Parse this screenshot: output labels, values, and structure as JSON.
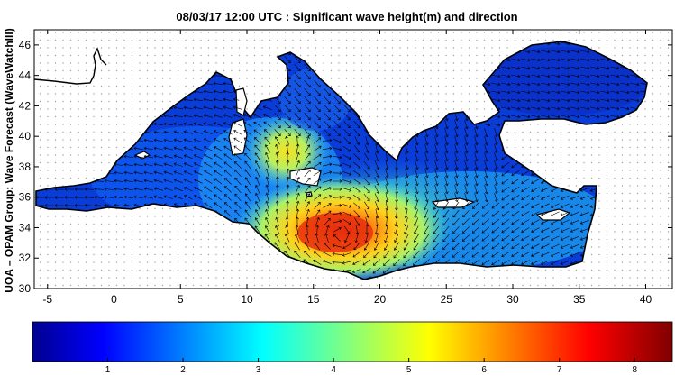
{
  "title": "08/03/17 12:00 UTC : Significant wave height(m) and direction",
  "side_label": "UOA – OPAM Group: Wave Forecast  (WaveWatchIII)",
  "map": {
    "lon_range": [
      -6,
      42
    ],
    "lat_range": [
      30,
      47
    ],
    "x_ticks": [
      -5,
      0,
      5,
      10,
      15,
      20,
      25,
      30,
      35,
      40
    ],
    "y_ticks": [
      30,
      32,
      34,
      36,
      38,
      40,
      42,
      44,
      46
    ],
    "land_color": "#ffffff",
    "coast_color": "#000000"
  },
  "colorbar": {
    "min": 0,
    "max": 8.5,
    "ticks": [
      1,
      2,
      3,
      4,
      5,
      6,
      7,
      8
    ],
    "colormap": "jet"
  },
  "chart_data": {
    "type": "heatmap",
    "variable": "Significant wave height (m) and direction",
    "units": "m",
    "peak_region": {
      "lon": 17,
      "lat": 33.5,
      "value": 7.0
    },
    "secondary_peak": {
      "lon": 12,
      "lat": 38.5,
      "value": 4.5
    },
    "regional_values": [
      {
        "lon": 1,
        "lat": 37.5,
        "value": 1.2
      },
      {
        "lon": 5,
        "lat": 40,
        "value": 1.3
      },
      {
        "lon": 13.5,
        "lat": 35.5,
        "value": 5.8
      },
      {
        "lon": 19,
        "lat": 35,
        "value": 5.3
      },
      {
        "lon": 22,
        "lat": 34.5,
        "value": 4.0
      },
      {
        "lon": 27,
        "lat": 33.5,
        "value": 2.6
      },
      {
        "lon": 33,
        "lat": 33.5,
        "value": 1.5
      },
      {
        "lon": 16,
        "lat": 42,
        "value": 1.8
      },
      {
        "lon": 32,
        "lat": 43,
        "value": 0.5
      },
      {
        "lon": 25,
        "lat": 38,
        "value": 1.5
      }
    ]
  }
}
